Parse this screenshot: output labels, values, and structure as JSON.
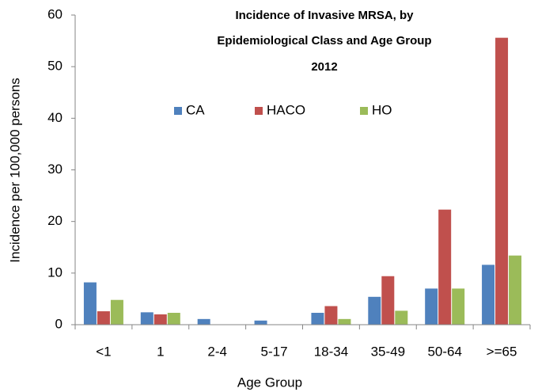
{
  "chart_data": {
    "type": "bar",
    "title": [
      "Incidence of Invasive MRSA, by",
      "Epidemiological Class and Age Group",
      "2012"
    ],
    "x_label": "Age Group",
    "y_label": "Incidence per 100,000 persons",
    "categories": [
      "<1",
      "1",
      "2-4",
      "5-17",
      "18-34",
      "35-49",
      "50-64",
      ">=65"
    ],
    "series": [
      {
        "name": "CA",
        "color": "#4f81bd",
        "values": [
          8.2,
          2.4,
          1.1,
          0.8,
          2.3,
          5.4,
          7.0,
          11.6
        ]
      },
      {
        "name": "HACO",
        "color": "#c0504d",
        "values": [
          2.6,
          2.0,
          0,
          0,
          3.6,
          9.4,
          22.3,
          55.6
        ]
      },
      {
        "name": "HO",
        "color": "#9bbb59",
        "values": [
          4.8,
          2.3,
          0,
          0,
          1.1,
          2.7,
          7.0,
          13.4
        ]
      }
    ],
    "ylim": [
      0,
      60
    ],
    "yticks": [
      0,
      10,
      20,
      30,
      40,
      50,
      60
    ],
    "grid": false,
    "legend": "upper center"
  }
}
